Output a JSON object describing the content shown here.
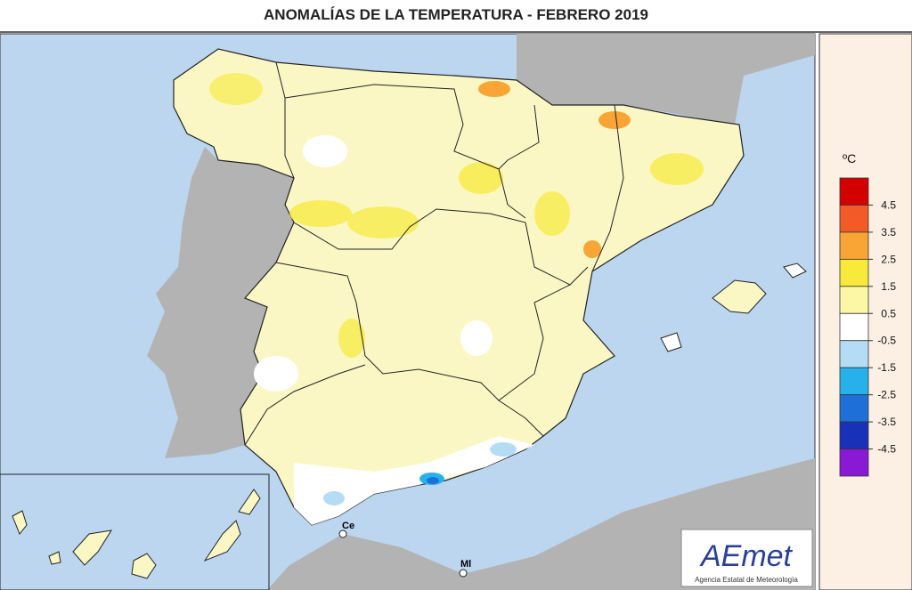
{
  "title": "ANOMALÍAS DE LA TEMPERATURA - FEBRERO 2019",
  "legend": {
    "unit": "ºC",
    "ticks": [
      4.5,
      3.5,
      2.5,
      1.5,
      0.5,
      -0.5,
      -1.5,
      -2.5,
      -3.5,
      -4.5
    ],
    "colors": [
      "#d40000",
      "#f25a28",
      "#f9a535",
      "#f7ea3b",
      "#fbf7a5",
      "#ffffff",
      "#b5dcf5",
      "#27b1ea",
      "#1f6fd9",
      "#1732b8",
      "#8a19d6"
    ]
  },
  "places": [
    "Ce",
    "Ml"
  ],
  "logo": {
    "name": "AEmet",
    "subtitle": "Agencia Estatal de Meteorología"
  }
}
